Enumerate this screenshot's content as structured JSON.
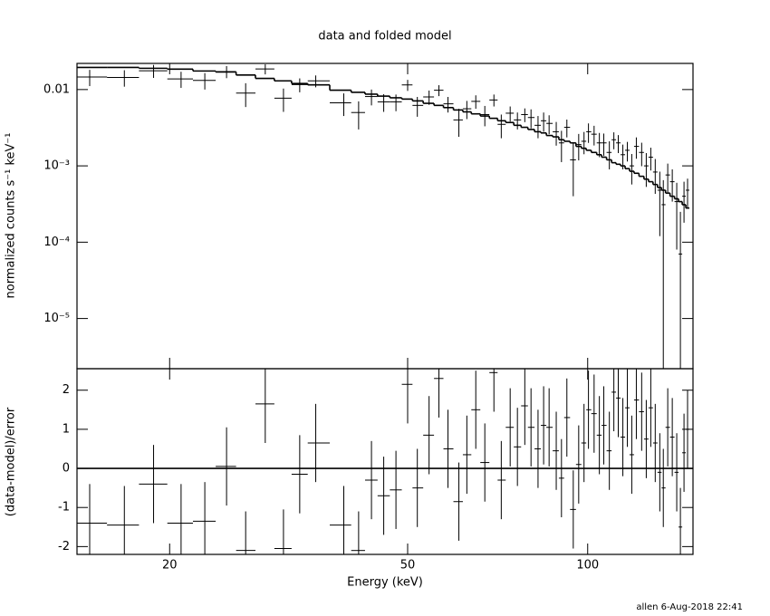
{
  "chart_data": [
    {
      "type": "errorbar",
      "title": "data and folded model",
      "ylabel": "normalized counts s⁻¹ keV⁻¹",
      "xscale": "log",
      "yscale": "log",
      "xlim": [
        14,
        150
      ],
      "ylim": [
        2.2e-06,
        0.022
      ],
      "yticks": [
        0.01,
        {
          "value": 0.001,
          "label": "10⁻³"
        },
        {
          "value": 0.0001,
          "label": "10⁻⁴"
        },
        {
          "value": 1e-05,
          "label": "10⁻⁵"
        }
      ],
      "x": [
        14.7,
        16.8,
        18.8,
        20.9,
        22.9,
        24.9,
        26.8,
        28.9,
        31.0,
        33.0,
        35.1,
        39.1,
        41.4,
        43.5,
        45.6,
        47.8,
        50,
        51.9,
        54.3,
        56.4,
        58.4,
        60.9,
        62.8,
        65.0,
        67.3,
        69.7,
        71.7,
        74.2,
        76.3,
        78.5,
        80.4,
        82.6,
        84.4,
        86.2,
        88.6,
        90.4,
        92.3,
        94.6,
        96.6,
        98.6,
        100.3,
        102.5,
        104.6,
        106.4,
        108.7,
        110.6,
        112.5,
        114.5,
        116.5,
        118.5,
        120.6,
        123.1,
        125.3,
        127.5,
        129.7,
        132.0,
        133.8,
        136.1,
        138.5,
        140.9,
        142.9,
        144.9,
        146.9
      ],
      "series": [
        {
          "color": "#000000",
          "values": [
            0.0146,
            0.0144,
            0.0176,
            0.0138,
            0.0132,
            0.0172,
            0.009,
            0.0186,
            0.0077,
            0.0116,
            0.013,
            0.0067,
            0.005,
            0.0081,
            0.0069,
            0.0069,
            0.0115,
            0.0062,
            0.008,
            0.0098,
            0.0065,
            0.004,
            0.0056,
            0.007,
            0.0047,
            0.0073,
            0.0035,
            0.0049,
            0.004,
            0.0047,
            0.0043,
            0.0034,
            0.0039,
            0.0036,
            0.0028,
            0.002,
            0.0032,
            0.0012,
            0.0019,
            0.0021,
            0.0028,
            0.0026,
            0.002,
            0.002,
            0.0015,
            0.0022,
            0.002,
            0.0014,
            0.0016,
            0.001,
            0.0018,
            0.0015,
            0.001,
            0.0013,
            0.00083,
            0.00048,
            0.00031,
            0.00076,
            0.00062,
            0.00034,
            7e-05,
            0.0004,
            0.00048
          ],
          "errors": [
            0.0035,
            0.0035,
            0.0034,
            0.0033,
            0.0032,
            0.0031,
            0.0031,
            0.0028,
            0.0026,
            0.0024,
            0.0023,
            0.0022,
            0.002,
            0.0019,
            0.0018,
            0.0017,
            0.0019,
            0.0018,
            0.0017,
            0.0016,
            0.0015,
            0.0016,
            0.0015,
            0.0014,
            0.0014,
            0.0013,
            0.0012,
            0.0011,
            0.001,
            0.00096,
            0.0012,
            0.0011,
            0.0011,
            0.001,
            0.00096,
            0.00088,
            0.00084,
            0.0008,
            0.00072,
            0.00068,
            0.0008,
            0.00075,
            0.0007,
            0.00065,
            0.0006,
            0.00055,
            0.00053,
            0.0005,
            0.00046,
            0.00043,
            0.00056,
            0.00051,
            0.00047,
            0.00043,
            0.0004,
            0.00036,
            0.00034,
            0.00031,
            0.00028,
            0.00026,
            0.00018,
            0.00022,
            0.0002
          ]
        },
        {
          "color": "#000000",
          "style": "step",
          "values": [
            0.0195,
            0.0195,
            0.019,
            0.0185,
            0.0175,
            0.017,
            0.0155,
            0.014,
            0.013,
            0.012,
            0.0115,
            0.0098,
            0.0092,
            0.0087,
            0.0082,
            0.0078,
            0.0075,
            0.0071,
            0.0066,
            0.0062,
            0.0058,
            0.0054,
            0.0051,
            0.0048,
            0.0045,
            0.0042,
            0.0039,
            0.0037,
            0.0034,
            0.0032,
            0.003,
            0.0028,
            0.0027,
            0.0025,
            0.0024,
            0.0022,
            0.0021,
            0.002,
            0.0018,
            0.0017,
            0.0016,
            0.0015,
            0.0014,
            0.0013,
            0.0012,
            0.0011,
            0.00105,
            0.001,
            0.00092,
            0.00085,
            0.0008,
            0.00073,
            0.00067,
            0.00062,
            0.00057,
            0.00052,
            0.00048,
            0.00044,
            0.0004,
            0.00037,
            0.00034,
            0.00031,
            0.00028
          ]
        }
      ]
    },
    {
      "type": "residual",
      "ylabel": "(data-model)/error",
      "xlabel": "Energy (keV)",
      "annotation": "allen  6-Aug-2018 22:41",
      "xscale": "log",
      "xlim": [
        14,
        150
      ],
      "ylim": [
        -2.2,
        2.55
      ],
      "xticks": [
        20,
        50,
        100
      ],
      "yticks": [
        -2,
        -1,
        0,
        1,
        2
      ],
      "reference_line": {
        "value": 0,
        "color": "#00ff00"
      },
      "color": "#000000",
      "values": [
        -1.4,
        -1.45,
        -0.4,
        -1.4,
        -1.35,
        0.05,
        -2.1,
        1.65,
        -2.05,
        -0.15,
        0.65,
        -1.45,
        -2.1,
        -0.3,
        -0.7,
        -0.55,
        2.15,
        -0.5,
        0.85,
        2.3,
        0.5,
        -0.85,
        0.35,
        1.5,
        0.15,
        2.45,
        -0.3,
        1.05,
        0.55,
        1.6,
        1.05,
        0.5,
        1.1,
        1.05,
        0.45,
        -0.25,
        1.3,
        -1.05,
        0.1,
        0.65,
        1.5,
        1.4,
        0.85,
        1.1,
        0.45,
        1.95,
        1.8,
        0.8,
        1.55,
        0.35,
        1.75,
        1.45,
        0.75,
        1.55,
        0.65,
        -0.1,
        -0.5,
        1.05,
        0.8,
        -0.1,
        -1.5,
        0.4,
        1.0
      ],
      "errors": [
        1,
        1,
        1,
        1,
        1,
        1,
        1,
        1,
        1,
        1,
        1,
        1,
        1,
        1,
        1,
        1,
        1,
        1,
        1,
        1,
        1,
        1,
        1,
        1,
        1,
        1,
        1,
        1,
        1,
        1,
        1,
        1,
        1,
        1,
        1,
        1,
        1,
        1,
        1,
        1,
        1,
        1,
        1,
        1,
        1,
        1,
        1,
        1,
        1,
        1,
        1,
        1,
        1,
        1,
        1,
        1,
        1,
        1,
        1,
        1,
        1,
        1,
        1
      ]
    }
  ]
}
